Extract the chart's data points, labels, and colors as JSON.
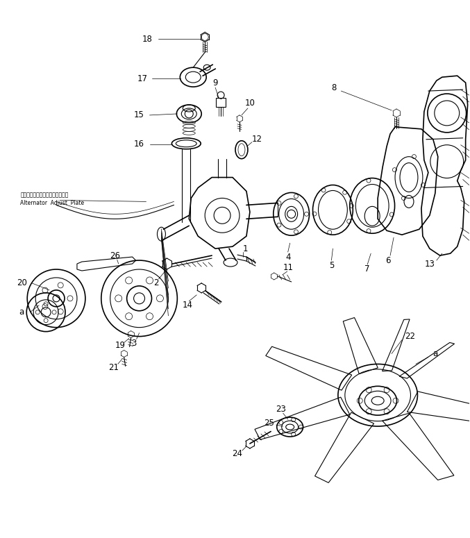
{
  "background_color": "#ffffff",
  "line_color": "#000000",
  "figure_width": 6.77,
  "figure_height": 7.75,
  "dpi": 100,
  "annotation_text_jp": "オルタネータアジャストプレート",
  "annotation_text_en": "Alternator  Adjust  Plate"
}
